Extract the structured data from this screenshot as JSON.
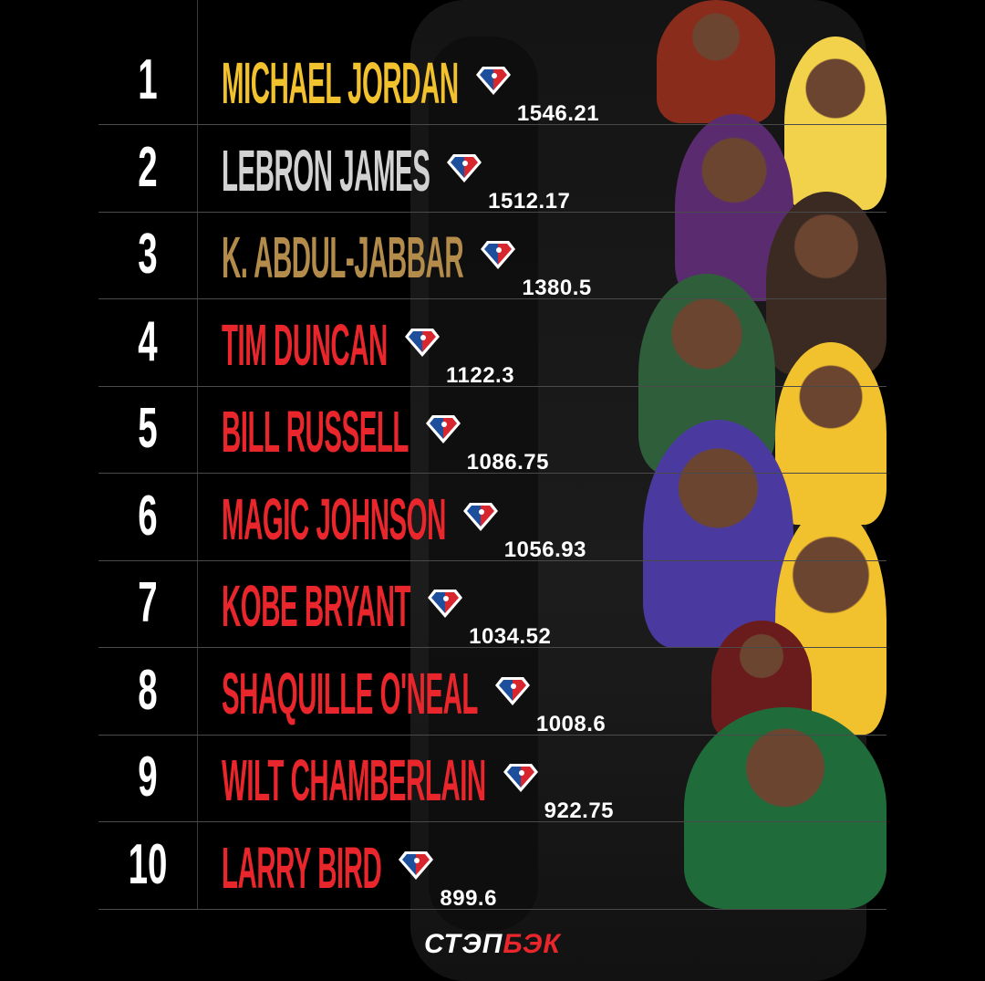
{
  "colors": {
    "gold": "#f2c12e",
    "silver": "#d2d2d2",
    "bronze": "#b38b4a",
    "red": "#e8262b",
    "background": "#000000"
  },
  "icon": "nba-75-diamond-icon",
  "rows": [
    {
      "rank": "1",
      "name": "MICHAEL JORDAN",
      "value": "1546.21",
      "tier": "gold"
    },
    {
      "rank": "2",
      "name": "LEBRON JAMES",
      "value": "1512.17",
      "tier": "silver"
    },
    {
      "rank": "3",
      "name": "K. ABDUL-JABBAR",
      "value": "1380.5",
      "tier": "bronze"
    },
    {
      "rank": "4",
      "name": "TIM DUNCAN",
      "value": "1122.3",
      "tier": "red"
    },
    {
      "rank": "5",
      "name": "BILL RUSSELL",
      "value": "1086.75",
      "tier": "red"
    },
    {
      "rank": "6",
      "name": "MAGIC JOHNSON",
      "value": "1056.93",
      "tier": "red"
    },
    {
      "rank": "7",
      "name": "KOBE BRYANT",
      "value": "1034.52",
      "tier": "red"
    },
    {
      "rank": "8",
      "name": "SHAQUILLE O'NEAL",
      "value": "1008.6",
      "tier": "red"
    },
    {
      "rank": "9",
      "name": "WILT CHAMBERLAIN",
      "value": "922.75",
      "tier": "red"
    },
    {
      "rank": "10",
      "name": "LARRY BIRD",
      "value": "899.6",
      "tier": "red"
    }
  ],
  "footer": {
    "logo_part1": "СТЭП",
    "logo_part2": "БЭК"
  }
}
